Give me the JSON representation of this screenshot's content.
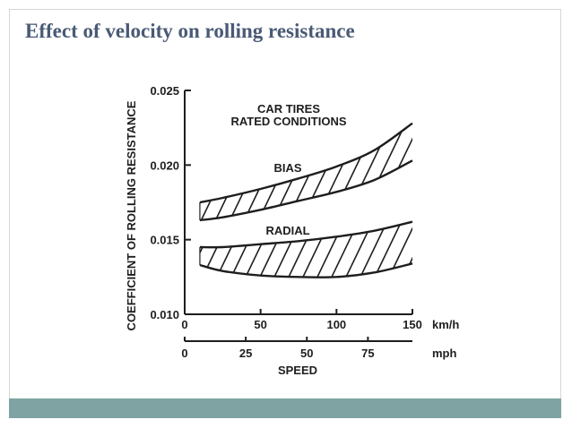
{
  "slide": {
    "title": "Effect of velocity on rolling resistance"
  },
  "colors": {
    "title": "#4a5a76",
    "footer": "#7fa3a2",
    "ink": "#1e1e1e"
  },
  "chart_data": {
    "type": "line",
    "title": "",
    "ylabel": "COEFFICIENT OF ROLLING RESISTANCE",
    "xlabel": "SPEED",
    "x_unit": "km/h",
    "x2_unit": "mph",
    "xlim": [
      0,
      150
    ],
    "ylim": [
      0.01,
      0.025
    ],
    "x_ticks": [
      0,
      50,
      100,
      150
    ],
    "x_tick_labels": [
      "0",
      "50",
      "100",
      "150"
    ],
    "x2_ticks": [
      0,
      25,
      50,
      75
    ],
    "x2_tick_labels": [
      "0",
      "25",
      "50",
      "75"
    ],
    "y_ticks": [
      0.01,
      0.015,
      0.02,
      0.025
    ],
    "y_tick_labels": [
      "0.010",
      "0.015",
      "0.020",
      "0.025"
    ],
    "annotations": [
      "CAR TIRES",
      "RATED CONDITIONS"
    ],
    "series": [
      {
        "name": "BIAS",
        "x": [
          10,
          25,
          50,
          75,
          100,
          125,
          150
        ],
        "upper": [
          0.0175,
          0.0178,
          0.0184,
          0.0191,
          0.0199,
          0.021,
          0.0228
        ],
        "lower": [
          0.0163,
          0.0165,
          0.017,
          0.0176,
          0.0182,
          0.019,
          0.0203
        ]
      },
      {
        "name": "RADIAL",
        "x": [
          10,
          25,
          50,
          75,
          100,
          125,
          150
        ],
        "upper": [
          0.0145,
          0.0145,
          0.0147,
          0.0149,
          0.0152,
          0.0156,
          0.0162
        ],
        "lower": [
          0.0133,
          0.0129,
          0.0126,
          0.0125,
          0.0125,
          0.0128,
          0.0134
        ]
      }
    ]
  }
}
